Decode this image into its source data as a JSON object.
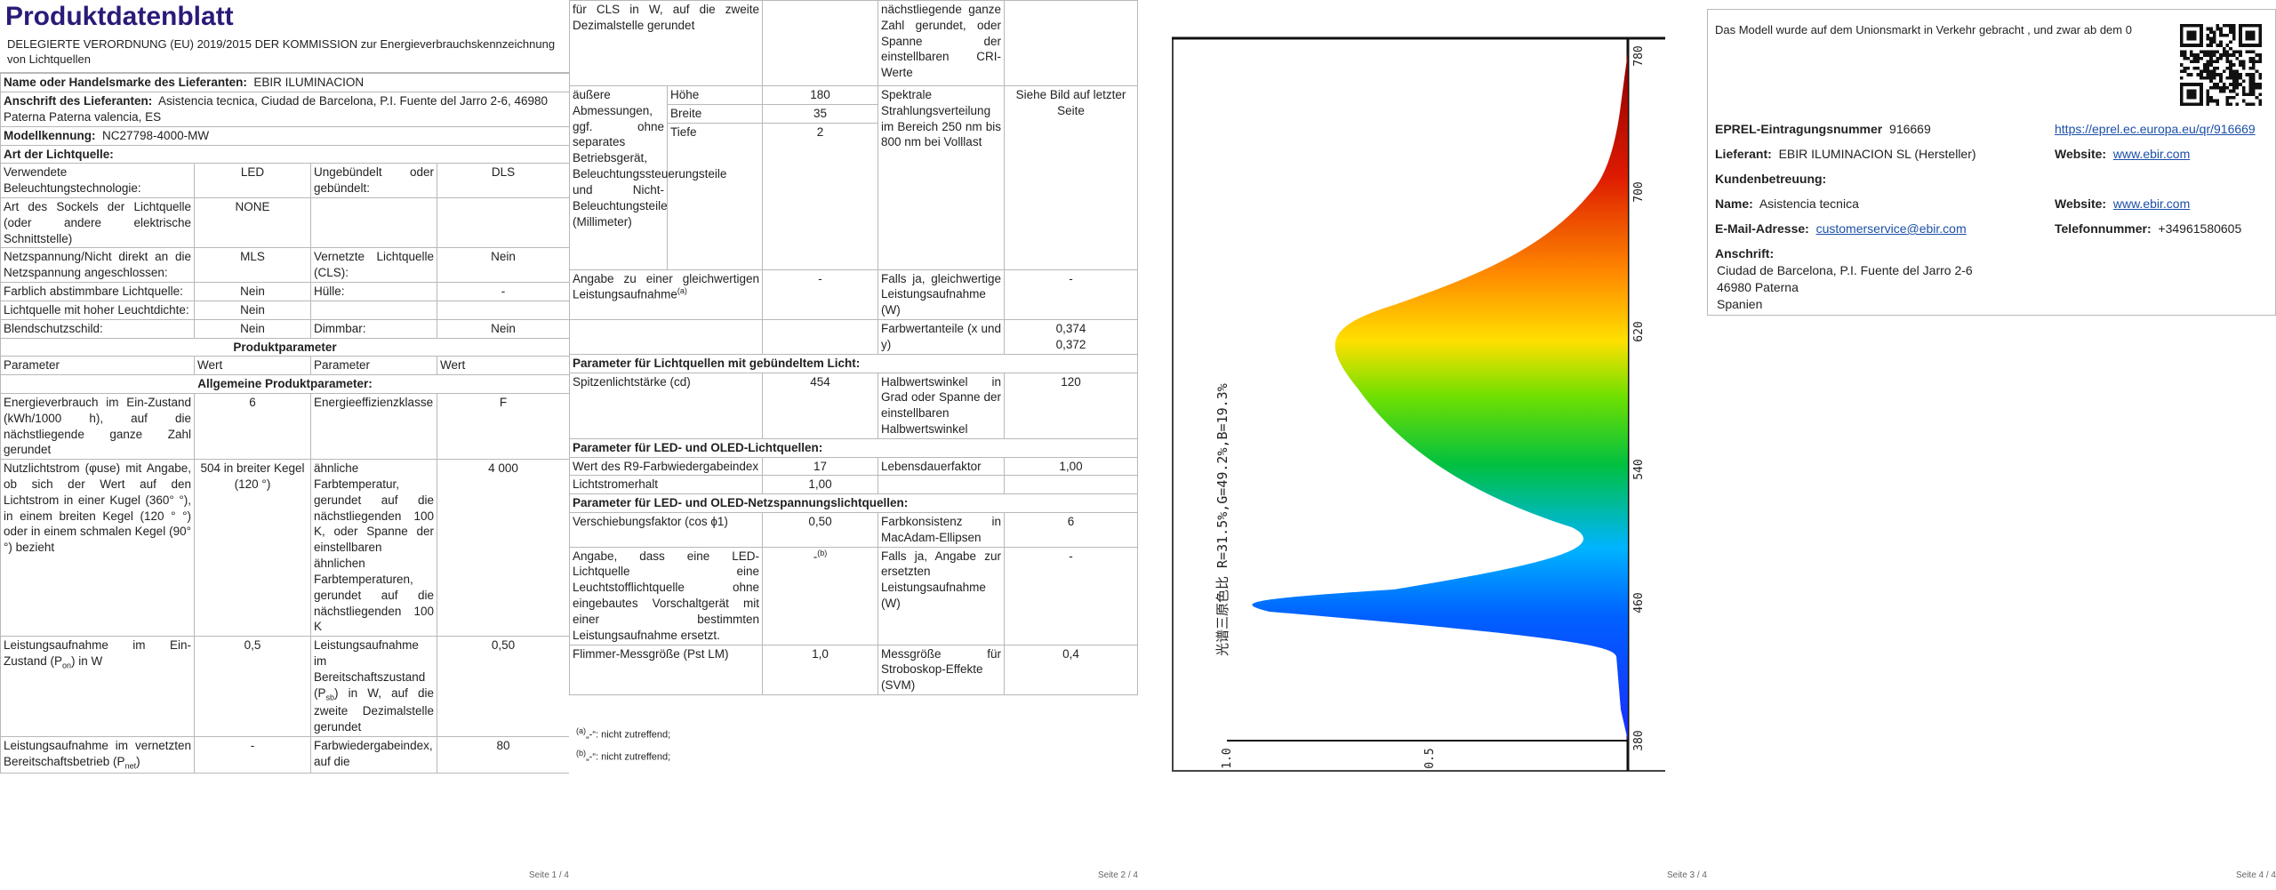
{
  "pages": [
    "Seite 1 / 4",
    "Seite 2 / 4",
    "Seite 3 / 4",
    "Seite 4 / 4"
  ],
  "p1": {
    "title": "Produktdatenblatt",
    "subtitle": "DELEGIERTE VERORDNUNG (EU) 2019/2015 DER KOMMISSION zur Energieverbrauchskennzeichnung von Lichtquellen",
    "brand_label": "Name oder Handelsmarke des Lieferanten:",
    "brand_value": "EBIR ILUMINACION",
    "address_label": "Anschrift des Lieferanten:",
    "address_value": "Asistencia tecnica, Ciudad de Barcelona, P.I. Fuente del Jarro 2-6, 46980 Paterna Paterna valencia, ES",
    "model_label": "Modellkennung:",
    "model_value": "NC27798-4000-MW",
    "source_type": "Art der Lichtquelle:",
    "r1": {
      "a": "Verwendete Beleuchtungstechnologie:",
      "b": "LED",
      "c": "Ungebündelt oder gebündelt:",
      "d": "DLS"
    },
    "r2": {
      "a": "Art des Sockels der Lichtquelle (oder andere elektrische Schnittstelle)",
      "b": "NONE",
      "c": "",
      "d": ""
    },
    "r3": {
      "a": "Netzspannung/Nicht direkt an die Netzspannung angeschlossen:",
      "b": "MLS",
      "c": "Vernetzte Lichtquelle (CLS):",
      "d": "Nein"
    },
    "r4": {
      "a": "Farblich abstimmbare Lichtquelle:",
      "b": "Nein",
      "c": "Hülle:",
      "d": "-"
    },
    "r5": {
      "a": "Lichtquelle mit hoher Leuchtdichte:",
      "b": "Nein",
      "c": "",
      "d": ""
    },
    "r6": {
      "a": "Blendschutzschild:",
      "b": "Nein",
      "c": "Dimmbar:",
      "d": "Nein"
    },
    "params_heading": "Produktparameter",
    "hdr": {
      "a": "Parameter",
      "b": "Wert",
      "c": "Parameter",
      "d": "Wert"
    },
    "general_heading": "Allgemeine Produktparameter:",
    "g1": {
      "a": "Energieverbrauch im Ein-Zustand (kWh/1000 h), auf die nächstliegende ganze Zahl gerundet",
      "b": "6",
      "c": "Energieeffizienzklasse",
      "d": "F"
    },
    "g2": {
      "a": "Nutzlichtstrom (φuse) mit Angabe, ob sich der Wert auf den Lichtstrom in einer Kugel (360° °), in einem breiten Kegel (120 ° °) oder in einem schmalen Kegel (90° °) bezieht",
      "b": "504 in breiter Kegel (120 °)",
      "c": "ähnliche Farbtemperatur, gerundet auf die nächstliegenden 100 K, oder Spanne der einstellbaren ähnlichen Farbtemperaturen, gerundet auf die nächstliegenden 100 K",
      "d": "4 000"
    },
    "g3": {
      "a_pre": "Leistungsaufnahme im Ein-Zustand (P",
      "a_sub": "on",
      "a_post": ") in W",
      "b": "0,5",
      "c_pre": "Leistungsaufnahme im Bereitschaftszustand (P",
      "c_sub": "sb",
      "c_post": ") in W, auf die zweite Dezimalstelle gerundet",
      "d": "0,50"
    },
    "g4": {
      "a_pre": "Leistungsaufnahme im vernetzten Bereitschaftsbetrieb (P",
      "a_sub": "net",
      "a_post": ")",
      "b": "-",
      "c": "Farbwiedergabeindex, auf die",
      "d": "80"
    }
  },
  "p2": {
    "t1": "für CLS in W, auf die zweite Dezimalstelle gerundet",
    "t2": "nächstliegende ganze Zahl gerundet, oder Spanne der einstellbaren CRI-Werte",
    "dims_label": "äußere Abmessungen, ggf. ohne separates Betriebsgerät, Beleuchtungssteuerungsteile und Nicht-Beleuchtungsteile (Millimeter)",
    "h_label": "Höhe",
    "h_val": "180",
    "w_label": "Breite",
    "w_val": "35",
    "d_label": "Tiefe",
    "d_val": "2",
    "spd_label": "Spektrale Strahlungsverteilung im Bereich 250 nm bis 800 nm bei Volllast",
    "spd_val": "Siehe Bild auf letzter Seite",
    "eq_label": "Angabe zu einer gleichwertigen Leistungsaufnahme",
    "eq_sup": "(a)",
    "eq_val": "-",
    "eq2_label": "Falls ja, gleichwertige Leistungsaufnahme (W)",
    "eq2_val": "-",
    "xy_label": "Farbwertanteile (x und y)",
    "xy_val1": "0,374",
    "xy_val2": "0,372",
    "directional_heading": "Parameter für Lichtquellen mit gebündeltem Licht:",
    "peak_label": "Spitzenlichtstärke (cd)",
    "peak_val": "454",
    "beam_label": "Halbwertswinkel in Grad oder Spanne der einstellbaren Halbwertswinkel",
    "beam_val": "120",
    "led_heading": "Parameter für LED- und OLED-Lichtquellen:",
    "r9_label": "Wert des R9-Farbwiedergabeindex",
    "r9_val": "17",
    "life_label": "Lebensdauerfaktor",
    "life_val": "1,00",
    "maint_label": "Lichtstromerhalt",
    "maint_val": "1,00",
    "mains_heading": "Parameter für LED- und OLED-Netzspannungslichtquellen:",
    "pf_label": "Verschiebungsfaktor (cos ϕ1)",
    "pf_val": "0,50",
    "mac_label": "Farbkonsistenz in MacAdam-Ellipsen",
    "mac_val": "6",
    "repl_label": "Angabe, dass eine LED-Lichtquelle eine Leuchtstofflichtquelle ohne eingebautes Vorschaltgerät mit einer bestimmten Leistungsaufnahme ersetzt.",
    "repl_val_pre": "-",
    "repl_val_sup": "(b)",
    "repl2_label": "Falls ja, Angabe zur ersetzten Leistungsaufnahme (W)",
    "repl2_val": "-",
    "flicker_label": "Flimmer-Messgröße (Pst LM)",
    "flicker_val": "1,0",
    "strobe_label": "Messgröße für Stroboskop-Effekte (SVM)",
    "strobe_val": "0,4",
    "fn_a_sup": "(a)",
    "fn_a": "„-“: nicht zutreffend;",
    "fn_b_sup": "(b)",
    "fn_b": "„-“: nicht zutreffend;"
  },
  "p3": {
    "ticks_wavelength": [
      "380",
      "460",
      "540",
      "620",
      "700",
      "780"
    ],
    "ticks_intensity": [
      "1.0",
      "0.5"
    ],
    "ratio_label": "光谱三原色比 R=31.5%,G=49.2%,B=19.3%"
  },
  "p4": {
    "intro": "Das Modell wurde auf dem Unionsmarkt in Verkehr gebracht , und zwar ab dem 0",
    "eprel_label": "EPREL-Eintragungsnummer",
    "eprel_val": "916669",
    "eprel_url": "https://eprel.ec.europa.eu/qr/916669",
    "supplier_label": "Lieferant:",
    "supplier_val": "EBIR ILUMINACION SL (Hersteller)",
    "website_label": "Website:",
    "website_val": "www.ebir.com",
    "support_heading": "Kundenbetreuung:",
    "name_label": "Name:",
    "name_val": "Asistencia tecnica",
    "website2_label": "Website:",
    "website2_val": "www.ebir.com",
    "email_label": "E-Mail-Adresse:",
    "email_val": "customerservice@ebir.com",
    "phone_label": "Telefonnummer:",
    "phone_val": "+34961580605",
    "addr_heading": "Anschrift:",
    "addr1": "Ciudad de Barcelona, P.I. Fuente del Jarro 2-6",
    "addr2": "46980 Paterna",
    "addr3": "Spanien"
  }
}
